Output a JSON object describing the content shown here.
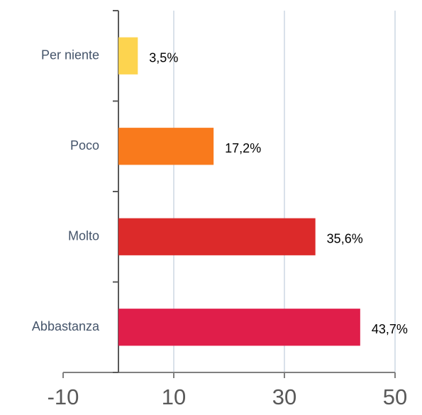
{
  "chart_data": {
    "type": "barh",
    "categories": [
      "Per niente",
      "Poco",
      "Molto",
      "Abbastanza"
    ],
    "values": [
      3.5,
      17.2,
      35.6,
      43.7
    ],
    "value_labels": [
      "3,5%",
      "17,2%",
      "35,6%",
      "43,7%"
    ],
    "colors": [
      "#fdd44f",
      "#f97a1c",
      "#dc2a2a",
      "#e01e4a"
    ],
    "xlim": [
      -10,
      50
    ],
    "xticks": [
      -10,
      10,
      30,
      50
    ],
    "grid": true
  }
}
